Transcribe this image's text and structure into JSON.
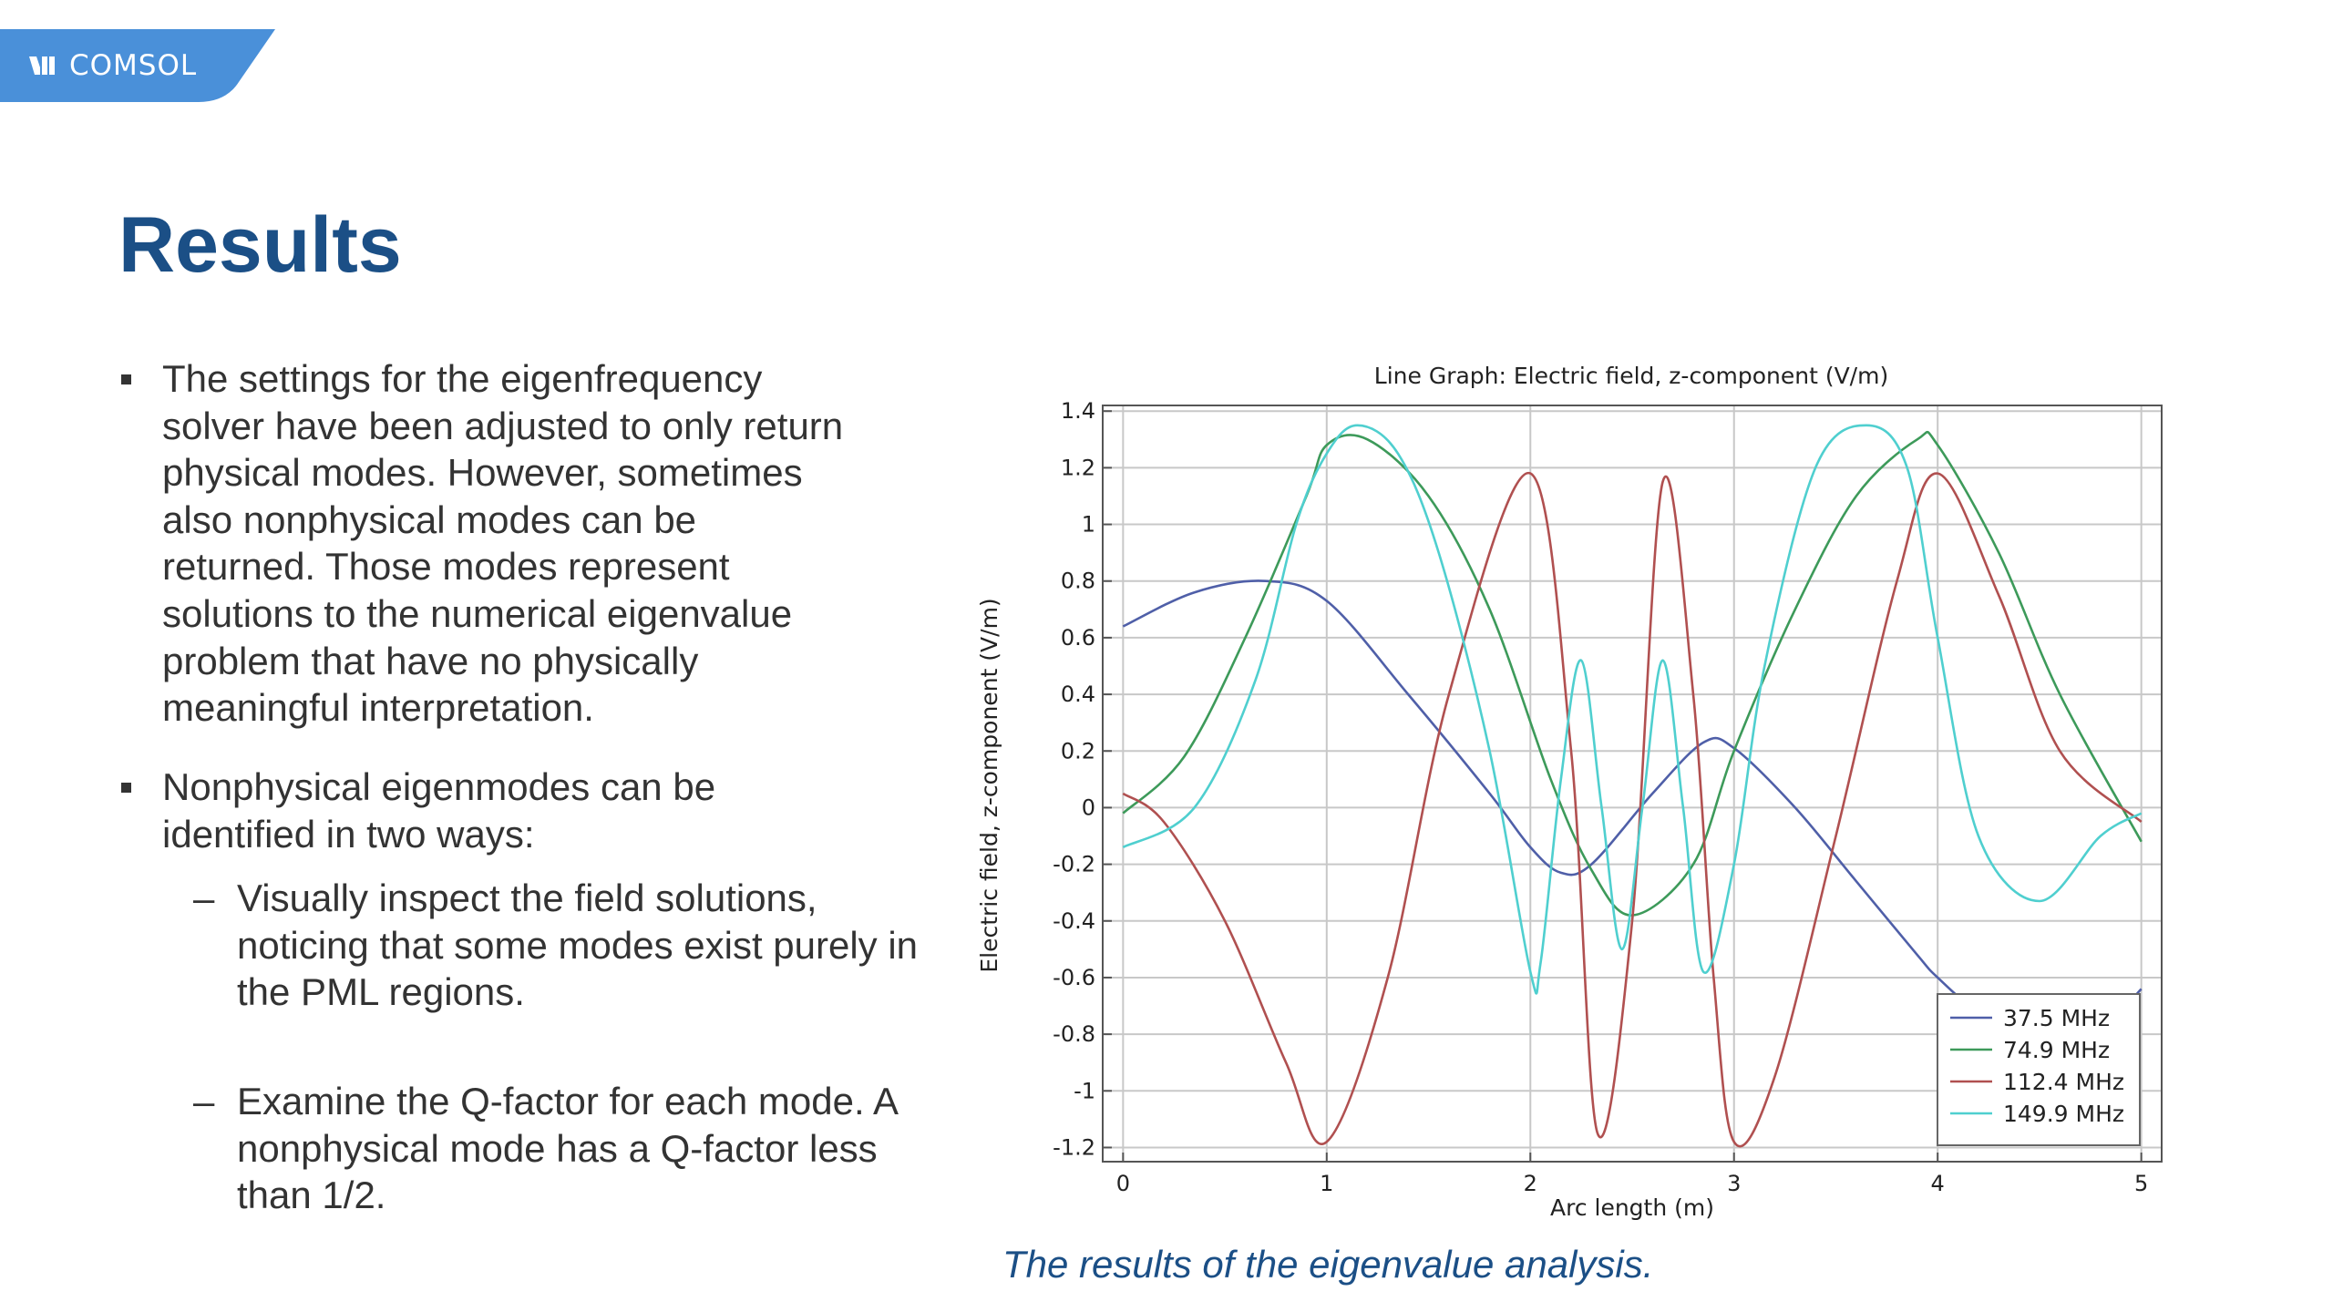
{
  "brand": {
    "logo_text": "COMSOL",
    "color": "#4a90d9"
  },
  "slide": {
    "title": "Results",
    "bullets": [
      {
        "text": "The settings for the eigenfrequency solver have been adjusted to only return physical modes. However, sometimes also nonphysical modes can be returned. Those modes represent solutions to the numerical eigenvalue problem that have no physically meaningful interpretation."
      },
      {
        "text": "Nonphysical eigenmodes can be identified in two ways:",
        "subitems": [
          "Visually inspect the field solutions, noticing that some modes exist purely in the PML regions.",
          "Examine the Q-factor for each mode. A nonphysical mode has a Q-factor less than 1/2."
        ]
      }
    ],
    "caption": "The results of the eigenvalue analysis."
  },
  "chart_data": {
    "type": "line",
    "title": "Line Graph: Electric field, z-component (V/m)",
    "xlabel": "Arc length (m)",
    "ylabel": "Electric field, z-component (V/m)",
    "xlim": [
      -0.1,
      5.1
    ],
    "ylim": [
      -1.25,
      1.42
    ],
    "xticks": [
      0,
      1,
      2,
      3,
      4,
      5
    ],
    "yticks": [
      1.4,
      1.2,
      1,
      0.8,
      0.6,
      0.4,
      0.2,
      0,
      -0.2,
      -0.4,
      -0.6,
      -0.8,
      -1,
      -1.2
    ],
    "grid": true,
    "legend_position": "bottom-right",
    "series": [
      {
        "name": "37.5 MHz",
        "color": "#4f5fa8",
        "x": [
          0,
          0.35,
          0.7,
          1.0,
          1.4,
          1.8,
          2.0,
          2.15,
          2.3,
          2.6,
          2.85,
          3.0,
          3.3,
          3.6,
          3.9,
          4.0,
          4.2,
          4.5,
          4.8,
          5.0
        ],
        "y": [
          0.64,
          0.76,
          0.8,
          0.73,
          0.4,
          0.05,
          -0.14,
          -0.23,
          -0.2,
          0.05,
          0.23,
          0.21,
          0.0,
          -0.26,
          -0.52,
          -0.6,
          -0.72,
          -0.82,
          -0.78,
          -0.64
        ]
      },
      {
        "name": "74.9 MHz",
        "color": "#3d9a5a",
        "x": [
          0,
          0.3,
          0.6,
          0.9,
          1.0,
          1.2,
          1.5,
          1.8,
          2.1,
          2.3,
          2.5,
          2.8,
          3.0,
          3.3,
          3.6,
          3.9,
          4.0,
          4.3,
          4.6,
          5.0
        ],
        "y": [
          -0.02,
          0.18,
          0.6,
          1.1,
          1.28,
          1.3,
          1.1,
          0.7,
          0.1,
          -0.22,
          -0.38,
          -0.2,
          0.2,
          0.7,
          1.1,
          1.3,
          1.28,
          0.9,
          0.4,
          -0.12
        ]
      },
      {
        "name": "112.4 MHz",
        "color": "#b05050",
        "x": [
          0,
          0.2,
          0.5,
          0.8,
          1.0,
          1.3,
          1.6,
          2.0,
          2.2,
          2.33,
          2.5,
          2.65,
          2.8,
          2.9,
          3.0,
          3.2,
          3.5,
          3.8,
          4.0,
          4.3,
          4.6,
          5.0
        ],
        "y": [
          0.05,
          -0.05,
          -0.4,
          -0.9,
          -1.18,
          -0.6,
          0.4,
          1.18,
          0.2,
          -1.15,
          -0.4,
          1.15,
          0.4,
          -0.6,
          -1.18,
          -0.95,
          -0.1,
          0.8,
          1.18,
          0.75,
          0.2,
          -0.05
        ]
      },
      {
        "name": "149.9 MHz",
        "color": "#4fcfcf",
        "x": [
          0,
          0.35,
          0.65,
          0.85,
          1.0,
          1.15,
          1.35,
          1.55,
          1.8,
          2.0,
          2.05,
          2.15,
          2.25,
          2.35,
          2.45,
          2.55,
          2.65,
          2.75,
          2.85,
          3.0,
          3.15,
          3.4,
          3.65,
          3.85,
          4.0,
          4.2,
          4.5,
          4.8,
          5.0
        ],
        "y": [
          -0.14,
          0.0,
          0.45,
          1.0,
          1.25,
          1.35,
          1.25,
          0.9,
          0.2,
          -0.58,
          -0.55,
          0.1,
          0.52,
          0.0,
          -0.5,
          0.0,
          0.52,
          0.0,
          -0.58,
          -0.2,
          0.5,
          1.2,
          1.35,
          1.2,
          0.6,
          -0.1,
          -0.33,
          -0.1,
          -0.02
        ]
      }
    ]
  }
}
